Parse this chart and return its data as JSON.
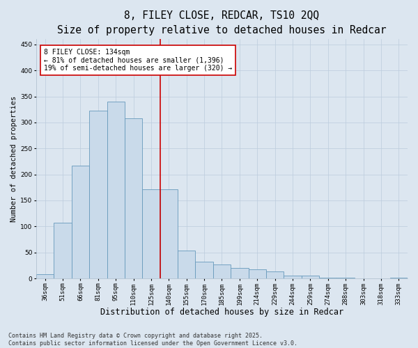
{
  "title_line1": "8, FILEY CLOSE, REDCAR, TS10 2QQ",
  "title_line2": "Size of property relative to detached houses in Redcar",
  "xlabel": "Distribution of detached houses by size in Redcar",
  "ylabel": "Number of detached properties",
  "categories": [
    "36sqm",
    "51sqm",
    "66sqm",
    "81sqm",
    "95sqm",
    "110sqm",
    "125sqm",
    "140sqm",
    "155sqm",
    "170sqm",
    "185sqm",
    "199sqm",
    "214sqm",
    "229sqm",
    "244sqm",
    "259sqm",
    "274sqm",
    "288sqm",
    "303sqm",
    "318sqm",
    "333sqm"
  ],
  "values": [
    8,
    107,
    217,
    323,
    340,
    308,
    172,
    172,
    54,
    32,
    27,
    20,
    18,
    14,
    5,
    5,
    1,
    1,
    0,
    0,
    1
  ],
  "bar_color": "#c9daea",
  "bar_edge_color": "#6699bb",
  "bar_linewidth": 0.6,
  "vline_color": "#cc0000",
  "vline_x": 6.5,
  "annotation_text": "8 FILEY CLOSE: 134sqm\n← 81% of detached houses are smaller (1,396)\n19% of semi-detached houses are larger (320) →",
  "annotation_box_color": "#ffffff",
  "annotation_box_edge": "#cc0000",
  "annotation_fontsize": 7.0,
  "ylim": [
    0,
    460
  ],
  "yticks": [
    0,
    50,
    100,
    150,
    200,
    250,
    300,
    350,
    400,
    450
  ],
  "grid_color": "#bbccdd",
  "background_color": "#dce6f0",
  "footer_text": "Contains HM Land Registry data © Crown copyright and database right 2025.\nContains public sector information licensed under the Open Government Licence v3.0.",
  "title_fontsize": 10.5,
  "title2_fontsize": 9.5,
  "xlabel_fontsize": 8.5,
  "ylabel_fontsize": 7.5,
  "tick_fontsize": 6.5,
  "footer_fontsize": 6.0
}
